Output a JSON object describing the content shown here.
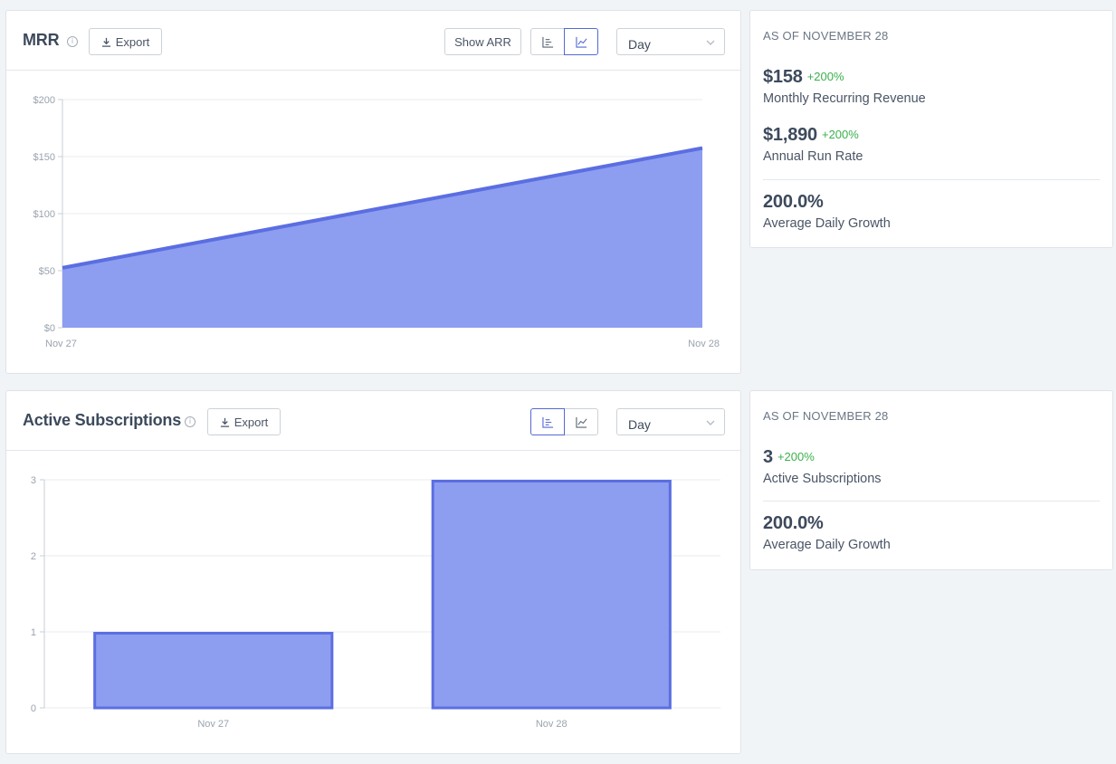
{
  "mrr_panel": {
    "title": "MRR",
    "export_label": "Export",
    "show_arr_label": "Show ARR",
    "interval": "Day",
    "active_view": "line"
  },
  "mrr_stats": {
    "as_of": "AS OF NOVEMBER 28",
    "mrr_value": "$158",
    "mrr_change": "+200%",
    "mrr_label": "Monthly Recurring Revenue",
    "arr_value": "$1,890",
    "arr_change": "+200%",
    "arr_label": "Annual Run Rate",
    "growth_value": "200.0%",
    "growth_label": "Average Daily Growth"
  },
  "subs_panel": {
    "title": "Active Subscriptions",
    "export_label": "Export",
    "interval": "Day",
    "active_view": "bar"
  },
  "subs_stats": {
    "as_of": "AS OF NOVEMBER 28",
    "subs_value": "3",
    "subs_change": "+200%",
    "subs_label": "Active Subscriptions",
    "growth_value": "200.0%",
    "growth_label": "Average Daily Growth"
  },
  "colors": {
    "accent": "#5469d4",
    "series_stroke": "#5b6ee1",
    "series_fill": "#8d9df0",
    "positive": "#3ab04b"
  },
  "icons": {
    "export": "download-icon",
    "info": "info-icon",
    "bar_view": "bar-chart-icon",
    "line_view": "line-chart-icon",
    "select": "chevron-down-icon"
  },
  "chart_data": [
    {
      "type": "area",
      "x": [
        "Nov 27",
        "Nov 28"
      ],
      "series": [
        {
          "values": [
            52.5,
            157.5
          ]
        }
      ],
      "yticks": [
        "$0",
        "$50",
        "$100",
        "$150",
        "$200"
      ],
      "ylim": [
        0,
        200
      ],
      "grid": true
    },
    {
      "type": "bar",
      "categories": [
        "Nov 27",
        "Nov 28"
      ],
      "values": [
        1,
        3
      ],
      "yticks": [
        "0",
        "1",
        "2",
        "3"
      ],
      "ylim": [
        0,
        3
      ],
      "grid": true
    }
  ]
}
